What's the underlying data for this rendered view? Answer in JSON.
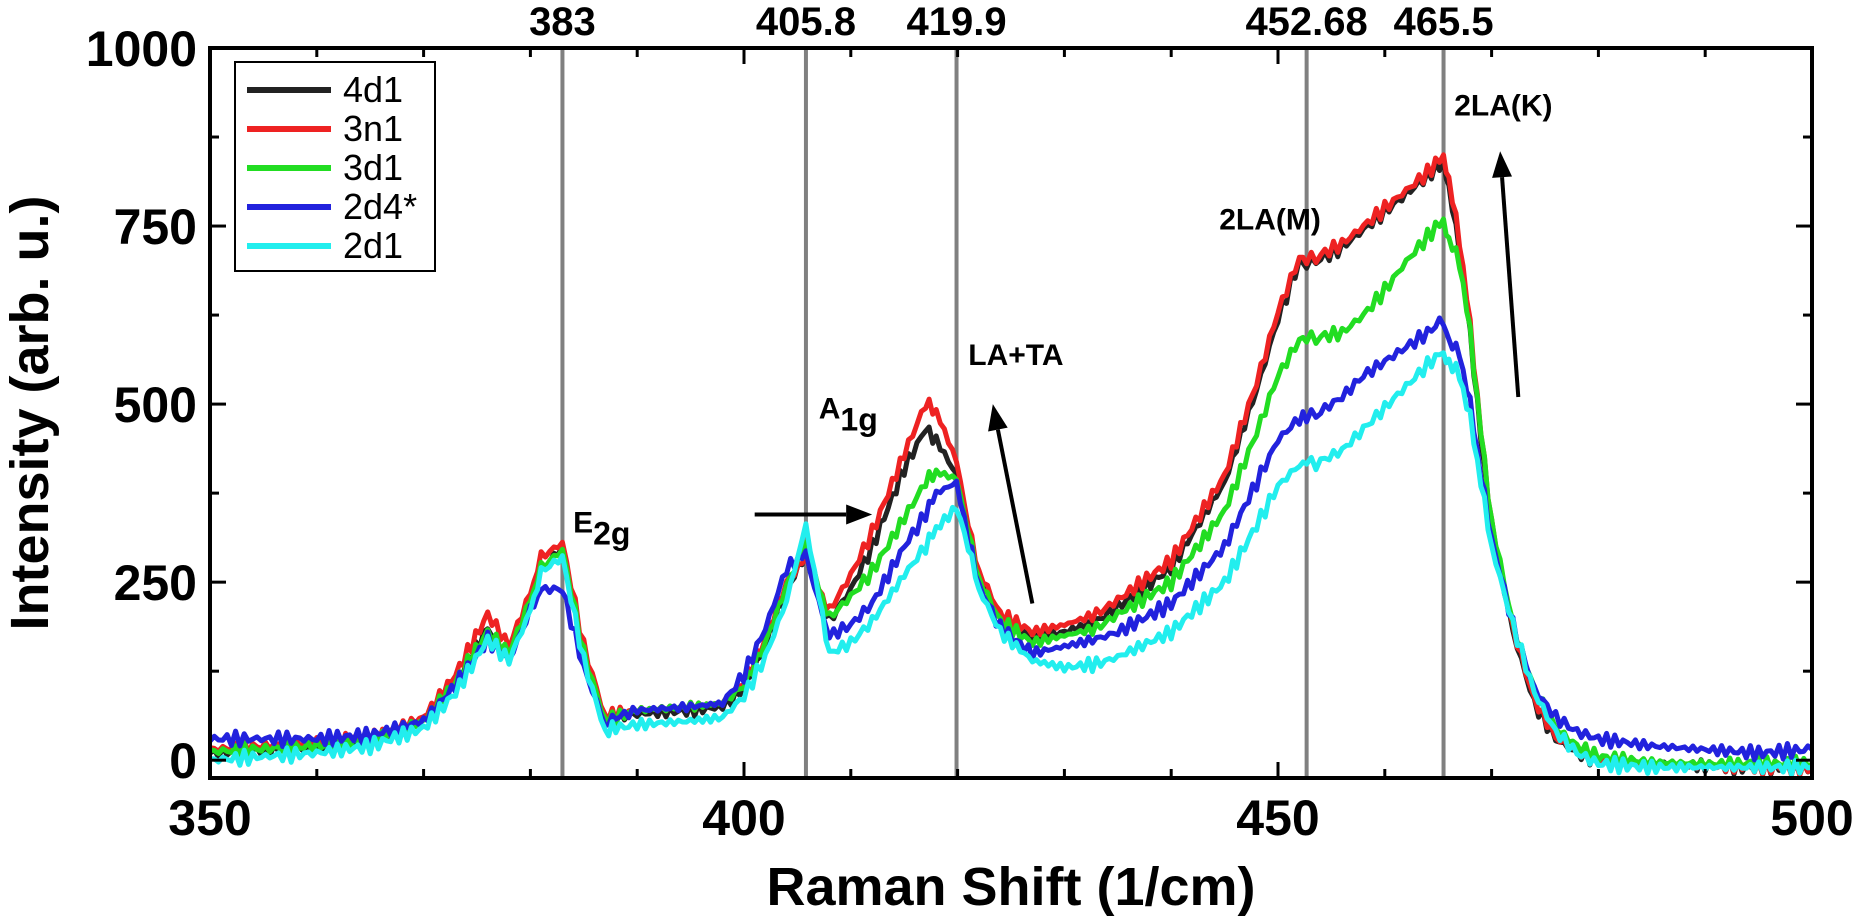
{
  "chart_data": {
    "type": "line",
    "title": "",
    "xlabel": "Raman Shift (1/cm)",
    "ylabel": "Intensity (arb. u.)",
    "xlim": [
      350,
      500
    ],
    "ylim": [
      -25,
      1000
    ],
    "xticks": [
      350,
      400,
      450,
      500
    ],
    "yticks": [
      0,
      250,
      500,
      750,
      1000
    ],
    "grid": false,
    "legend": "top-left",
    "reference_lines": [
      {
        "x": 383,
        "label": "383"
      },
      {
        "x": 405.8,
        "label": "405.8"
      },
      {
        "x": 419.9,
        "label": "419.9"
      },
      {
        "x": 452.68,
        "label": "452.68"
      },
      {
        "x": 465.5,
        "label": "465.5"
      }
    ],
    "reference_line_color": "#808080",
    "annotations": [
      {
        "text": "E",
        "sub": "2g",
        "x": 384,
        "y": 320
      },
      {
        "text": "A",
        "sub": "1g",
        "x": 407,
        "y": 480
      },
      {
        "text": "LA+TA",
        "x": 421,
        "y": 555
      },
      {
        "text": "2LA(M)",
        "x": 444.5,
        "y": 745
      },
      {
        "text": "2LA(K)",
        "x": 466.5,
        "y": 905
      }
    ],
    "arrows": [
      {
        "from": [
          401,
          345
        ],
        "to": [
          412,
          345
        ]
      },
      {
        "from": [
          427,
          220
        ],
        "to": [
          423.3,
          500
        ]
      },
      {
        "from": [
          472.5,
          510
        ],
        "to": [
          470.8,
          855
        ]
      }
    ],
    "series": [
      {
        "name": "4d1",
        "color": "#222222",
        "x": [
          350,
          360,
          365,
          370,
          373,
          376,
          378,
          380,
          381,
          383,
          385,
          387,
          388,
          390,
          395,
          398,
          400,
          402,
          404,
          405.8,
          407,
          408,
          410,
          412,
          415,
          417,
          418,
          419.9,
          421,
          422,
          424,
          427,
          430,
          433,
          435,
          440,
          445,
          448,
          450,
          452,
          452.68,
          454,
          456,
          458,
          460,
          462,
          464,
          465.5,
          466,
          467,
          468,
          469,
          470,
          472,
          474,
          476,
          478,
          480,
          485,
          490,
          495,
          500
        ],
        "y": [
          10,
          18,
          25,
          55,
          110,
          185,
          145,
          220,
          265,
          300,
          150,
          55,
          60,
          65,
          70,
          75,
          100,
          160,
          240,
          290,
          230,
          195,
          240,
          300,
          410,
          465,
          450,
          400,
          320,
          260,
          200,
          170,
          180,
          195,
          215,
          270,
          390,
          520,
          620,
          700,
          695,
          705,
          720,
          745,
          770,
          795,
          820,
          840,
          800,
          720,
          600,
          450,
          330,
          180,
          80,
          30,
          10,
          0,
          -5,
          -8,
          -10,
          -12
        ]
      },
      {
        "name": "3n1",
        "color": "#ee2222",
        "x": [
          350,
          360,
          365,
          370,
          373,
          376,
          378,
          380,
          381,
          383,
          385,
          387,
          388,
          390,
          395,
          398,
          400,
          402,
          404,
          405.8,
          407,
          408,
          410,
          412,
          415,
          417,
          418,
          419.9,
          421,
          422,
          424,
          427,
          430,
          433,
          435,
          440,
          445,
          448,
          450,
          452,
          452.68,
          454,
          456,
          458,
          460,
          462,
          464,
          465.5,
          466,
          467,
          468,
          469,
          470,
          472,
          474,
          476,
          478,
          480,
          485,
          490,
          495,
          500
        ],
        "y": [
          15,
          25,
          30,
          60,
          120,
          205,
          160,
          235,
          285,
          305,
          160,
          60,
          65,
          70,
          75,
          80,
          110,
          170,
          250,
          285,
          240,
          210,
          260,
          320,
          430,
          500,
          490,
          420,
          330,
          265,
          205,
          180,
          190,
          205,
          225,
          280,
          400,
          530,
          630,
          705,
          700,
          710,
          725,
          750,
          775,
          800,
          825,
          850,
          815,
          730,
          610,
          460,
          335,
          185,
          85,
          32,
          12,
          2,
          -5,
          -8,
          -10,
          -12
        ]
      },
      {
        "name": "3d1",
        "color": "#22dd22",
        "x": [
          350,
          360,
          365,
          370,
          373,
          376,
          378,
          380,
          381,
          383,
          385,
          387,
          388,
          390,
          395,
          398,
          400,
          402,
          404,
          405.8,
          407,
          408,
          410,
          412,
          415,
          417,
          418,
          419.9,
          421,
          422,
          424,
          427,
          430,
          433,
          435,
          440,
          445,
          448,
          450,
          452,
          452.68,
          454,
          456,
          458,
          460,
          462,
          464,
          465.5,
          466,
          467,
          468,
          469,
          470,
          472,
          474,
          476,
          478,
          480,
          485,
          490,
          495,
          500
        ],
        "y": [
          12,
          20,
          28,
          55,
          110,
          180,
          150,
          225,
          270,
          295,
          150,
          55,
          60,
          70,
          75,
          80,
          105,
          165,
          245,
          305,
          240,
          200,
          230,
          265,
          340,
          390,
          405,
          395,
          320,
          255,
          195,
          165,
          175,
          185,
          205,
          250,
          350,
          460,
          540,
          590,
          590,
          595,
          600,
          625,
          660,
          700,
          735,
          760,
          730,
          700,
          600,
          460,
          335,
          190,
          100,
          45,
          20,
          5,
          -3,
          -5,
          -5,
          -5
        ]
      },
      {
        "name": "2d4*",
        "color": "#2222dd",
        "x": [
          350,
          360,
          365,
          370,
          373,
          376,
          378,
          380,
          381,
          383,
          385,
          387,
          388,
          390,
          395,
          398,
          400,
          402,
          404,
          405.8,
          407,
          408,
          410,
          412,
          415,
          417,
          418,
          419.9,
          421,
          422,
          424,
          427,
          430,
          433,
          435,
          440,
          445,
          448,
          450,
          452,
          452.68,
          454,
          456,
          458,
          460,
          462,
          464,
          465.5,
          466,
          467,
          468,
          469,
          470,
          472,
          474,
          476,
          478,
          480,
          485,
          490,
          495,
          500
        ],
        "y": [
          30,
          30,
          35,
          55,
          105,
          170,
          140,
          210,
          240,
          240,
          130,
          50,
          60,
          70,
          75,
          80,
          120,
          185,
          270,
          290,
          220,
          175,
          190,
          220,
          300,
          345,
          375,
          390,
          310,
          245,
          185,
          150,
          160,
          170,
          180,
          220,
          300,
          390,
          450,
          480,
          480,
          490,
          510,
          540,
          560,
          580,
          600,
          620,
          590,
          570,
          500,
          400,
          310,
          190,
          100,
          60,
          40,
          30,
          20,
          15,
          10,
          15
        ]
      },
      {
        "name": "2d1",
        "color": "#22eeee",
        "x": [
          350,
          360,
          365,
          370,
          373,
          376,
          378,
          380,
          381,
          383,
          385,
          387,
          388,
          390,
          395,
          398,
          400,
          402,
          404,
          405.8,
          407,
          408,
          410,
          412,
          415,
          417,
          418,
          419.9,
          421,
          422,
          424,
          427,
          430,
          433,
          435,
          440,
          445,
          448,
          450,
          452,
          452.68,
          454,
          456,
          458,
          460,
          462,
          464,
          465.5,
          466,
          467,
          468,
          469,
          470,
          472,
          474,
          476,
          478,
          480,
          485,
          490,
          495,
          500
        ],
        "y": [
          0,
          10,
          20,
          45,
          95,
          170,
          140,
          210,
          265,
          285,
          140,
          40,
          45,
          50,
          55,
          60,
          90,
          145,
          225,
          330,
          230,
          150,
          165,
          195,
          260,
          300,
          325,
          355,
          300,
          240,
          180,
          140,
          130,
          135,
          145,
          180,
          250,
          330,
          385,
          415,
          415,
          420,
          435,
          465,
          495,
          525,
          555,
          575,
          560,
          540,
          480,
          390,
          300,
          190,
          95,
          40,
          10,
          -5,
          -10,
          -10,
          -10,
          -10
        ]
      }
    ]
  }
}
